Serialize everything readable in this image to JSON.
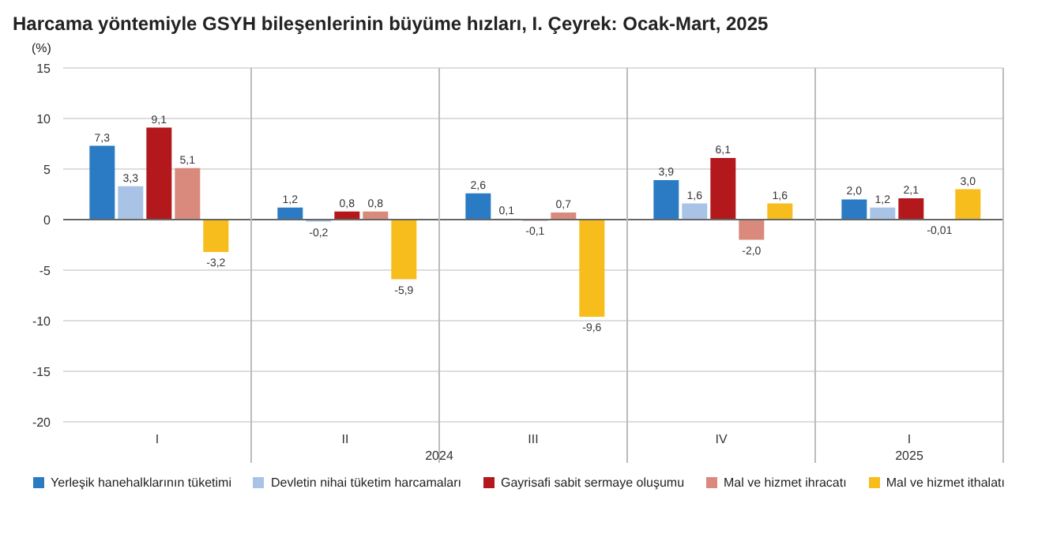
{
  "chart_data": {
    "type": "bar",
    "title": "Harcama yöntemiyle GSYH bileşenlerinin büyüme hızları, I. Çeyrek: Ocak-Mart, 2025",
    "ylabel": "(%)",
    "categories": [
      "I",
      "II",
      "III",
      "IV",
      "I"
    ],
    "annotations": [
      "2024",
      "2025"
    ],
    "series": [
      {
        "name": "Yerleşik hanehalklarının tüketimi",
        "color": "#2b7bc4",
        "values": [
          7.3,
          1.2,
          2.6,
          3.9,
          2.0
        ],
        "value_labels": [
          "7,3",
          "1,2",
          "2,6",
          "3,9",
          "2,0"
        ]
      },
      {
        "name": "Devletin nihai tüketim harcamaları",
        "color": "#a8c3e6",
        "values": [
          3.3,
          -0.2,
          0.1,
          1.6,
          1.2
        ],
        "value_labels": [
          "3,3",
          "-0,2",
          "0,1",
          "1,6",
          "1,2"
        ]
      },
      {
        "name": "Gayrisafi sabit sermaye oluşumu",
        "color": "#b3191c",
        "values": [
          9.1,
          0.8,
          -0.1,
          6.1,
          2.1
        ],
        "value_labels": [
          "9,1",
          "0,8",
          "-0,1",
          "6,1",
          "2,1"
        ]
      },
      {
        "name": "Mal ve hizmet ihracatı",
        "color": "#d98a7c",
        "values": [
          5.1,
          0.8,
          0.7,
          -2.0,
          -0.01
        ],
        "value_labels": [
          "5,1",
          "0,8",
          "0,7",
          "-2,0",
          "-0,01"
        ]
      },
      {
        "name": "Mal ve hizmet ithalatı",
        "color": "#f7bd1c",
        "values": [
          -3.2,
          -5.9,
          -9.6,
          1.6,
          3.0
        ],
        "value_labels": [
          "-3,2",
          "-5,9",
          "-9,6",
          "1,6",
          "3,0"
        ]
      }
    ],
    "ylim": [
      -20,
      15
    ],
    "yticks": [
      -20,
      -15,
      -10,
      -5,
      0,
      5,
      10,
      15
    ],
    "grid": true,
    "legend": "bottom"
  }
}
